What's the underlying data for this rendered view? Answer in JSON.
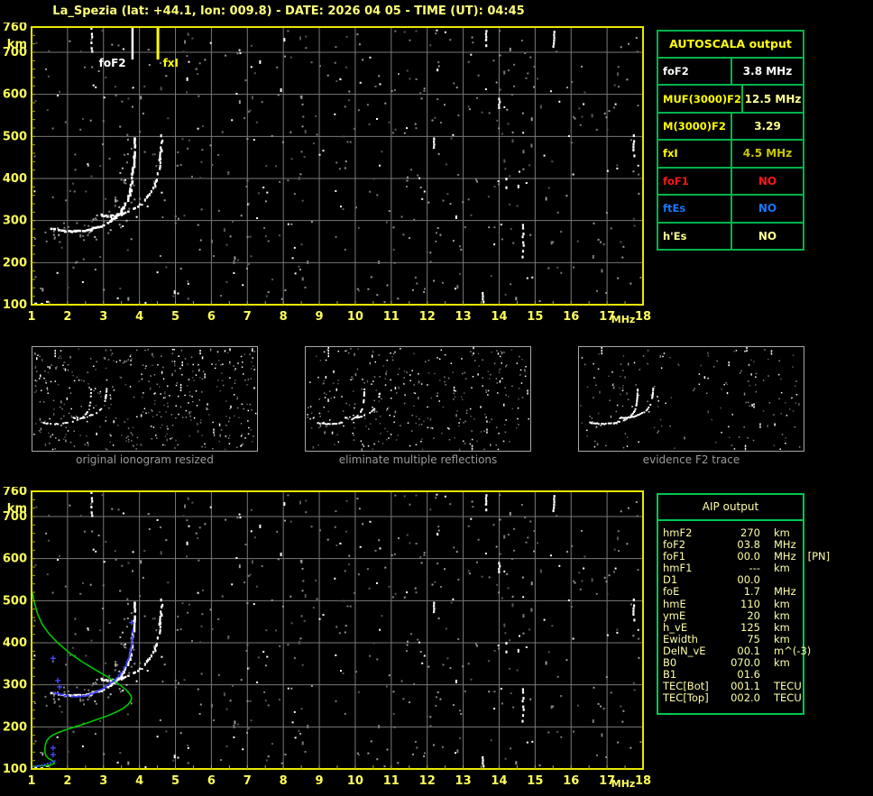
{
  "header": {
    "title": "La_Spezia (lat: +44.1, lon: 009.8) - DATE: 2026 04 05 - TIME (UT): 04:45"
  },
  "autoscala_table": {
    "title": "AUTOSCALA output",
    "border_color": "#00b44c",
    "rows": [
      {
        "label": "foF2",
        "value": "3.8 MHz",
        "label_color": "#ffffff",
        "value_color": "#ffffff"
      },
      {
        "label": "MUF(3000)F2",
        "value": "12.5 MHz",
        "label_color": "#ffff00",
        "value_color": "#ffff90"
      },
      {
        "label": "M(3000)F2",
        "value": "3.29",
        "label_color": "#ffff00",
        "value_color": "#ffff90"
      },
      {
        "label": "fxI",
        "value": "4.5 MHz",
        "label_color": "#ffff00",
        "value_color": "#c8c800"
      },
      {
        "label": "foF1",
        "value": "NO",
        "label_color": "#ff1616",
        "value_color": "#ff1616"
      },
      {
        "label": "ftEs",
        "value": "NO",
        "label_color": "#1478ff",
        "value_color": "#1478ff"
      },
      {
        "label": "h'Es",
        "value": "NO",
        "label_color": "#ffff90",
        "value_color": "#ffff90"
      }
    ]
  },
  "aip_table": {
    "title": "AIP output",
    "text_color": "#ffffa8",
    "rows": [
      {
        "label": "hmF2",
        "value": "270",
        "unit": "km",
        "note": ""
      },
      {
        "label": "foF2",
        "value": "03.8",
        "unit": "MHz",
        "note": ""
      },
      {
        "label": "foF1",
        "value": "00.0",
        "unit": "MHz",
        "note": "[PN]"
      },
      {
        "label": "hmF1",
        "value": "---",
        "unit": "km",
        "note": ""
      },
      {
        "label": "D1",
        "value": "00.0",
        "unit": "",
        "note": ""
      },
      {
        "label": "foE",
        "value": "1.7",
        "unit": "MHz",
        "note": ""
      },
      {
        "label": "hmE",
        "value": "110",
        "unit": "km",
        "note": ""
      },
      {
        "label": "ymE",
        "value": "20",
        "unit": "km",
        "note": ""
      },
      {
        "label": "h_vE",
        "value": "125",
        "unit": "km",
        "note": ""
      },
      {
        "label": "Ewidth",
        "value": "75",
        "unit": "km",
        "note": ""
      },
      {
        "label": "DelN_vE",
        "value": "00.1",
        "unit": "m^(-3)",
        "note": ""
      },
      {
        "label": "B0",
        "value": "070.0",
        "unit": "km",
        "note": ""
      },
      {
        "label": "B1",
        "value": "01.6",
        "unit": "",
        "note": ""
      },
      {
        "label": "TEC[Bot]",
        "value": "001.1",
        "unit": "TECU",
        "note": ""
      },
      {
        "label": "TEC[Top]",
        "value": "002.0",
        "unit": "TECU",
        "note": ""
      }
    ]
  },
  "thumbnails": [
    {
      "caption": "original ionogram resized",
      "noise_count": 430,
      "seed": 11,
      "trace_skip": 0.5
    },
    {
      "caption": "eliminate multiple reflections",
      "noise_count": 330,
      "seed": 12,
      "trace_skip": 0.45
    },
    {
      "caption": "evidence F2 trace",
      "noise_count": 175,
      "seed": 13,
      "trace_skip": 0.25
    }
  ],
  "chart_data": {
    "type": "scatter",
    "xlabel": "MHz",
    "ylabel": "km",
    "x_range": [
      1,
      18
    ],
    "y_range": [
      100,
      760
    ],
    "x_ticks": [
      1,
      2,
      3,
      4,
      5,
      6,
      7,
      8,
      9,
      10,
      11,
      12,
      13,
      14,
      15,
      16,
      17,
      18
    ],
    "y_ticks": [
      760,
      700,
      600,
      500,
      400,
      300,
      200,
      100
    ],
    "grid": true,
    "axis_color": "#e8e800",
    "grid_color": "#787878",
    "scaled_parameters": {
      "foF2_mhz": 3.8,
      "fxI_mhz": 4.5,
      "markers": [
        {
          "label": "foF2",
          "freq_mhz": 3.8,
          "color": "#ffffff"
        },
        {
          "label": "fxI",
          "freq_mhz": 4.5,
          "color": "#ffff00"
        }
      ]
    },
    "o_trace": [
      [
        1.5,
        284
      ],
      [
        1.6,
        281
      ],
      [
        1.7,
        279
      ],
      [
        1.85,
        278
      ],
      [
        2.0,
        277
      ],
      [
        2.2,
        277
      ],
      [
        2.4,
        278
      ],
      [
        2.6,
        281
      ],
      [
        2.8,
        286
      ],
      [
        3.0,
        293
      ],
      [
        3.15,
        301
      ],
      [
        3.3,
        311
      ],
      [
        3.45,
        323
      ],
      [
        3.55,
        336
      ],
      [
        3.65,
        352
      ],
      [
        3.72,
        371
      ],
      [
        3.76,
        392
      ],
      [
        3.79,
        415
      ],
      [
        3.81,
        438
      ],
      [
        3.82,
        462
      ],
      [
        3.83,
        487
      ],
      [
        3.83,
        508
      ]
    ],
    "x_trace": [
      [
        2.9,
        316
      ],
      [
        3.1,
        313
      ],
      [
        3.3,
        314
      ],
      [
        3.5,
        318
      ],
      [
        3.7,
        325
      ],
      [
        3.9,
        334
      ],
      [
        4.05,
        344
      ],
      [
        4.2,
        357
      ],
      [
        4.32,
        372
      ],
      [
        4.42,
        390
      ],
      [
        4.49,
        410
      ],
      [
        4.53,
        432
      ],
      [
        4.56,
        455
      ],
      [
        4.58,
        478
      ],
      [
        4.59,
        500
      ],
      [
        4.59,
        510
      ]
    ],
    "e_white": [
      [
        1.08,
        105
      ],
      [
        1.25,
        104
      ],
      [
        1.4,
        109
      ]
    ],
    "rfi_streaks": [
      [
        2.67,
        760,
        697
      ],
      [
        12.18,
        525,
        468
      ],
      [
        13.65,
        760,
        714
      ],
      [
        15.52,
        758,
        712
      ],
      [
        13.55,
        137,
        100
      ],
      [
        14.67,
        292,
        213
      ],
      [
        17.75,
        505,
        455
      ],
      [
        14.0,
        592,
        568
      ],
      [
        14.2,
        402,
        380
      ],
      [
        12.3,
        668,
        650
      ]
    ],
    "profile_green": [
      [
        1.02,
        520
      ],
      [
        1.08,
        495
      ],
      [
        1.17,
        468
      ],
      [
        1.3,
        443
      ],
      [
        1.5,
        420
      ],
      [
        1.75,
        398
      ],
      [
        2.05,
        376
      ],
      [
        2.4,
        355
      ],
      [
        2.75,
        337
      ],
      [
        3.05,
        322
      ],
      [
        3.3,
        309
      ],
      [
        3.5,
        297
      ],
      [
        3.65,
        286
      ],
      [
        3.74,
        277
      ],
      [
        3.78,
        270
      ],
      [
        3.76,
        262
      ],
      [
        3.68,
        253
      ],
      [
        3.55,
        244
      ],
      [
        3.35,
        235
      ],
      [
        3.1,
        226
      ],
      [
        2.8,
        217
      ],
      [
        2.5,
        208
      ],
      [
        2.2,
        200
      ],
      [
        1.95,
        193
      ],
      [
        1.75,
        187
      ],
      [
        1.6,
        181
      ],
      [
        1.5,
        175
      ],
      [
        1.43,
        168
      ],
      [
        1.39,
        160
      ],
      [
        1.37,
        150
      ],
      [
        1.37,
        140
      ],
      [
        1.4,
        131
      ],
      [
        1.47,
        125
      ],
      [
        1.56,
        121
      ],
      [
        1.62,
        117
      ],
      [
        1.63,
        113
      ],
      [
        1.55,
        110
      ],
      [
        1.4,
        108
      ],
      [
        1.2,
        107
      ],
      [
        1.05,
        106
      ],
      [
        1.0,
        104
      ]
    ],
    "restored_trace_blue": [
      [
        1.62,
        283
      ],
      [
        1.75,
        280
      ],
      [
        1.9,
        277
      ],
      [
        2.05,
        275
      ],
      [
        2.2,
        274
      ],
      [
        2.35,
        275
      ],
      [
        2.5,
        277
      ],
      [
        2.65,
        281
      ],
      [
        2.8,
        286
      ],
      [
        2.95,
        293
      ],
      [
        3.1,
        301
      ],
      [
        3.25,
        310
      ],
      [
        3.38,
        321
      ],
      [
        3.5,
        334
      ],
      [
        3.6,
        349
      ],
      [
        3.68,
        366
      ],
      [
        3.73,
        384
      ],
      [
        3.77,
        403
      ],
      [
        3.79,
        421
      ],
      [
        3.81,
        438
      ]
    ],
    "restored_markers_blue": [
      [
        1.6,
        363
      ],
      [
        1.73,
        310
      ],
      [
        1.78,
        295
      ],
      [
        1.6,
        150
      ],
      [
        1.6,
        134
      ],
      [
        3.78,
        448
      ]
    ],
    "e_trace_blue": [
      [
        1.02,
        108
      ],
      [
        1.1,
        109
      ],
      [
        1.18,
        110
      ],
      [
        1.26,
        111
      ],
      [
        1.34,
        113
      ],
      [
        1.42,
        115
      ],
      [
        1.5,
        117
      ],
      [
        1.57,
        119
      ],
      [
        1.62,
        121
      ]
    ],
    "colors": {
      "profile": "#00c800",
      "restored": "#3c3cff",
      "trace": "#ffffff"
    },
    "noise_seed": 5,
    "noise_count": 560
  }
}
